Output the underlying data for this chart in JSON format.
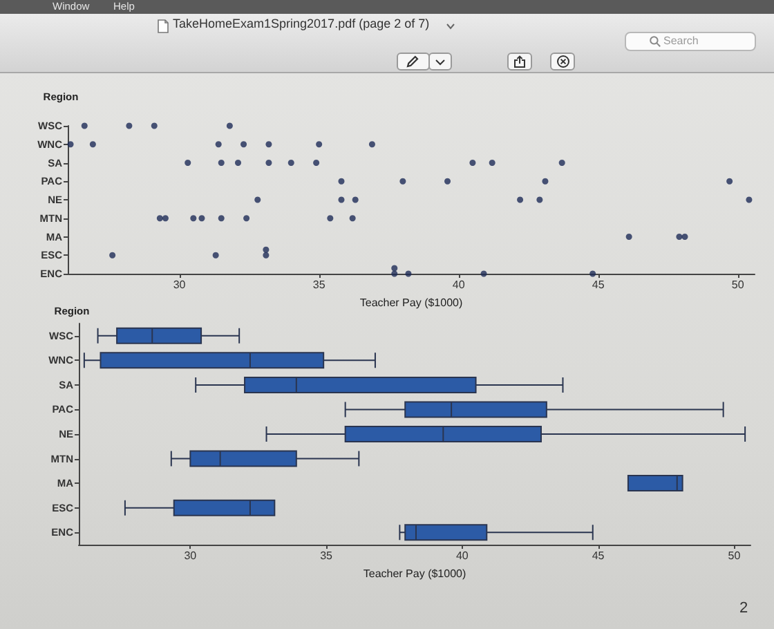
{
  "chart_data": [
    {
      "type": "scatter",
      "orientation": "horizontal",
      "ylabel": "Region",
      "xlabel": "Teacher Pay ($1000)",
      "categories": [
        "WSC",
        "WNC",
        "SA",
        "PAC",
        "NE",
        "MTN",
        "MA",
        "ESC",
        "ENC"
      ],
      "series": [
        {
          "color": "#1e2c58",
          "x": [
            "WSC",
            "WSC",
            "WSC",
            "WSC",
            "WNC",
            "WNC",
            "WNC",
            "WNC",
            "WNC",
            "WNC",
            "WNC",
            "SA",
            "SA",
            "SA",
            "SA",
            "SA",
            "SA",
            "SA",
            "SA",
            "SA",
            "PAC",
            "PAC",
            "PAC",
            "PAC",
            "PAC",
            "NE",
            "NE",
            "NE",
            "NE",
            "NE",
            "NE",
            "MTN",
            "MTN",
            "MTN",
            "MTN",
            "MTN",
            "MTN",
            "MTN",
            "MTN",
            "MA",
            "MA",
            "MA",
            "ESC",
            "ESC",
            "ESC",
            "ESC",
            "ENC",
            "ENC",
            "ENC",
            "ENC",
            "ENC"
          ],
          "values": [
            26.6,
            28.2,
            29.1,
            31.8,
            26.1,
            26.9,
            31.4,
            32.3,
            33.2,
            35,
            36.9,
            30.3,
            31.5,
            32.1,
            33.2,
            34,
            34.9,
            40.5,
            41.2,
            43.7,
            35.8,
            38,
            39.6,
            43.1,
            49.7,
            32.8,
            35.8,
            36.3,
            42.2,
            42.9,
            50.4,
            29.3,
            29.5,
            30.5,
            30.8,
            31.5,
            32.4,
            35.4,
            36.2,
            46.1,
            47.9,
            48.1,
            27.6,
            31.3,
            33.1,
            33.1,
            37.7,
            37.7,
            38.2,
            40.9,
            44.8
          ]
        }
      ],
      "xlim": [
        26,
        50.6
      ],
      "xticks": [
        30,
        35,
        40,
        45,
        50
      ],
      "marker": "circle",
      "annotations": [
        "TakeHomeExam1Spring2017.pdf (page 2 of 7)",
        "Search",
        "Window",
        "Help"
      ]
    },
    {
      "type": "box",
      "orientation": "horizontal",
      "ylabel": "Region",
      "xlabel": "Teacher Pay ($1000)",
      "categories": [
        "WSC",
        "WNC",
        "SA",
        "PAC",
        "NE",
        "MTN",
        "MA",
        "ESC",
        "ENC"
      ],
      "series": [
        {
          "color": "#2c5ba6",
          "boxes": [
            {
              "low": 26.6,
              "q1": 27.3,
              "median": 28.6,
              "q3": 30.4,
              "high": 31.8
            },
            {
              "low": 26.1,
              "q1": 26.7,
              "median": 32.2,
              "q3": 34.9,
              "high": 36.8
            },
            {
              "low": 30.2,
              "q1": 32,
              "median": 33.9,
              "q3": 40.5,
              "high": 43.7
            },
            {
              "low": 35.7,
              "q1": 37.9,
              "median": 39.6,
              "q3": 43.1,
              "high": 49.6
            },
            {
              "low": 32.8,
              "q1": 35.7,
              "median": 39.3,
              "q3": 42.9,
              "high": 50.4
            },
            {
              "low": 29.3,
              "q1": 30,
              "median": 31.1,
              "q3": 33.9,
              "high": 36.2
            },
            {
              "low": 46.1,
              "q1": 46.1,
              "median": 47.9,
              "q3": 48.1,
              "high": 48.1
            },
            {
              "low": 27.6,
              "q1": 29.4,
              "median": 32.2,
              "q3": 33.1,
              "high": 33.1
            },
            {
              "low": 37.7,
              "q1": 37.9,
              "median": 38.3,
              "q3": 40.9,
              "high": 44.8
            }
          ]
        }
      ],
      "xlim": [
        25.9,
        50.6
      ],
      "xticks": [
        30,
        35,
        40,
        45,
        50
      ],
      "annotations": [
        "2"
      ]
    }
  ]
}
